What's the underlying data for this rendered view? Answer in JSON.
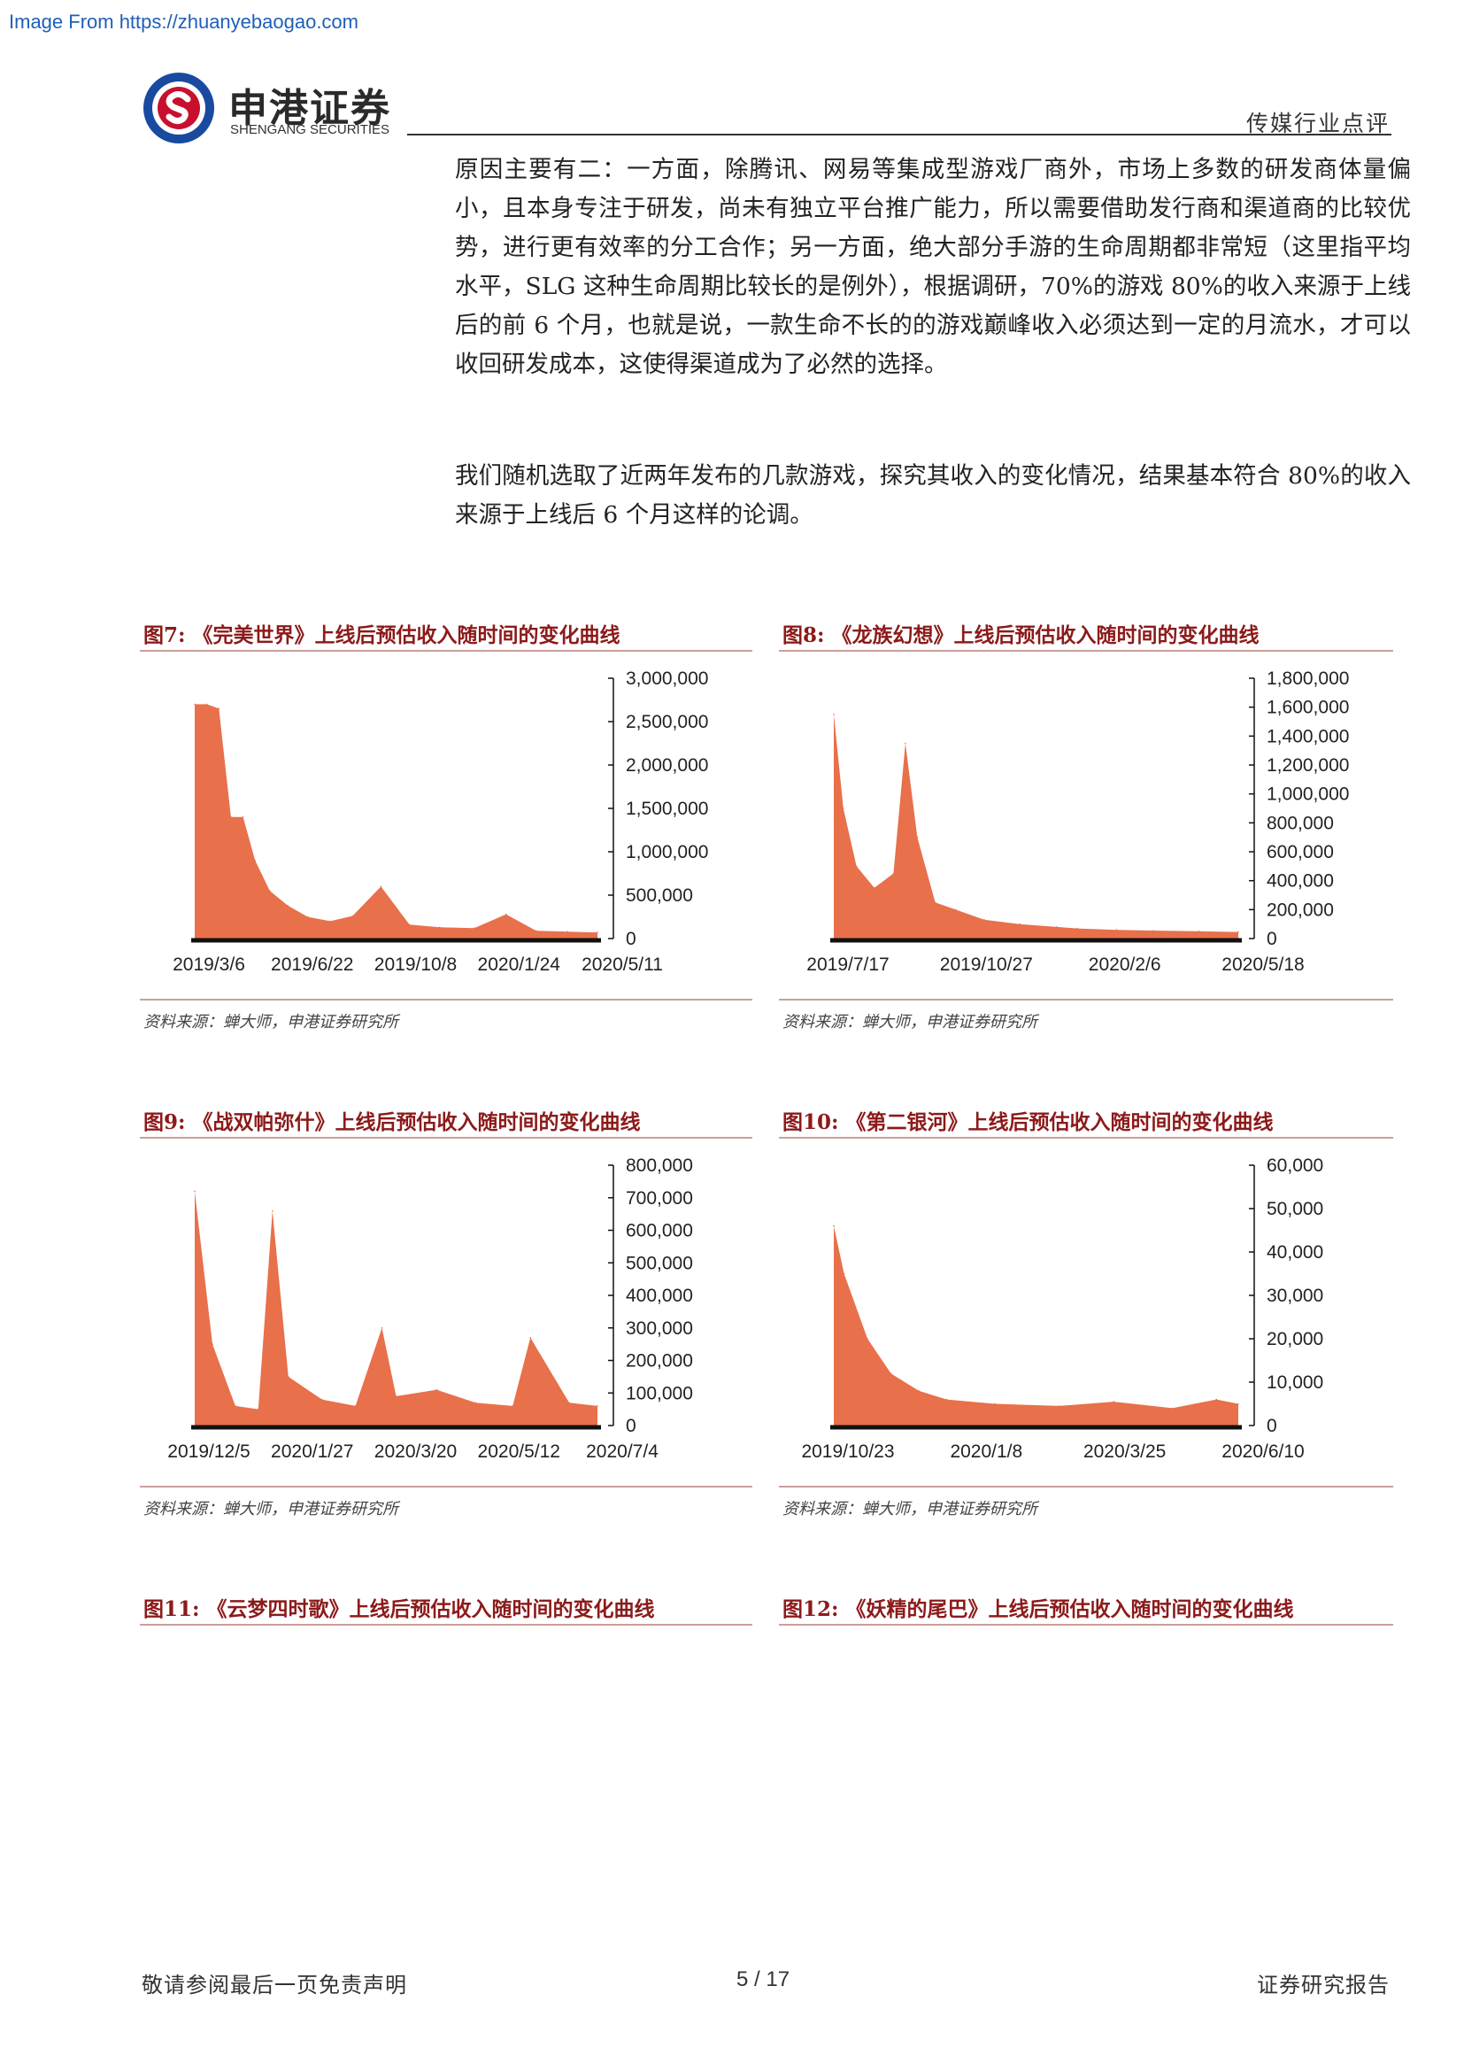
{
  "watermark": "Image From https://zhuanyebaogao.com",
  "brand": {
    "name_cn": "申港证券",
    "name_en": "SHENGANG SECURITIES",
    "logo_colors": [
      "#c8102e",
      "#1a4aa0"
    ]
  },
  "header": {
    "section": "传媒行业点评"
  },
  "body": {
    "paragraph1": "原因主要有二：一方面，除腾讯、网易等集成型游戏厂商外，市场上多数的研发商体量偏小，且本身专注于研发，尚未有独立平台推广能力，所以需要借助发行商和渠道商的比较优势，进行更有效率的分工合作；另一方面，绝大部分手游的生命周期都非常短（这里指平均水平，SLG 这种生命周期比较长的是例外），根据调研，70%的游戏 80%的收入来源于上线后的前 6 个月，也就是说，一款生命不长的的游戏巅峰收入必须达到一定的月流水，才可以收回研发成本，这使得渠道成为了必然的选择。",
    "paragraph2": "我们随机选取了近两年发布的几款游戏，探究其收入的变化情况，结果基本符合 80%的收入来源于上线后 6 个月这样的论调。"
  },
  "figures": [
    {
      "id": "fig7",
      "label": "图7:",
      "title": "《完美世界》上线后预估收入随时间的变化曲线",
      "source": "资料来源：蝉大师，申港证券研究所"
    },
    {
      "id": "fig8",
      "label": "图8:",
      "title": "《龙族幻想》上线后预估收入随时间的变化曲线",
      "source": "资料来源：蝉大师，申港证券研究所"
    },
    {
      "id": "fig9",
      "label": "图9:",
      "title": "《战双帕弥什》上线后预估收入随时间的变化曲线",
      "source": "资料来源：蝉大师，申港证券研究所"
    },
    {
      "id": "fig10",
      "label": "图10:",
      "title": "《第二银河》上线后预估收入随时间的变化曲线",
      "source": "资料来源：蝉大师，申港证券研究所"
    },
    {
      "id": "fig11",
      "label": "图11:",
      "title": "《云梦四时歌》上线后预估收入随时间的变化曲线"
    },
    {
      "id": "fig12",
      "label": "图12:",
      "title": "《妖精的尾巴》上线后预估收入随时间的变化曲线"
    }
  ],
  "chart_data": [
    {
      "type": "area",
      "color": "#e8704a",
      "x_ticks": [
        "2019/3/6",
        "2019/6/22",
        "2019/10/8",
        "2020/1/24",
        "2020/5/11"
      ],
      "y_ticks": [
        "3,000,000",
        "2,500,000",
        "2,000,000",
        "1,500,000",
        "1,000,000",
        "500,000",
        "0"
      ],
      "ylim": [
        0,
        3000000
      ],
      "x": [
        "2019/3/6",
        "2019/3/20",
        "2019/4/3",
        "2019/4/17",
        "2019/5/1",
        "2019/5/15",
        "2019/6/1",
        "2019/6/22",
        "2019/7/15",
        "2019/8/10",
        "2019/9/5",
        "2019/10/8",
        "2019/11/10",
        "2019/12/15",
        "2020/1/24",
        "2020/3/1",
        "2020/4/5",
        "2020/5/11",
        "2020/6/15"
      ],
      "values": [
        2700000,
        2700000,
        2650000,
        1400000,
        1400000,
        900000,
        550000,
        380000,
        250000,
        200000,
        260000,
        600000,
        160000,
        130000,
        120000,
        280000,
        90000,
        80000,
        70000
      ]
    },
    {
      "type": "area",
      "color": "#e8704a",
      "x_ticks": [
        "2019/7/17",
        "2019/10/27",
        "2020/2/6",
        "2020/5/18"
      ],
      "y_ticks": [
        "1,800,000",
        "1,600,000",
        "1,400,000",
        "1,200,000",
        "1,000,000",
        "800,000",
        "600,000",
        "400,000",
        "200,000",
        "0"
      ],
      "ylim": [
        0,
        1800000
      ],
      "x": [
        "2019/7/17",
        "2019/7/25",
        "2019/8/5",
        "2019/8/20",
        "2019/9/5",
        "2019/9/15",
        "2019/9/25",
        "2019/10/10",
        "2019/10/27",
        "2019/11/20",
        "2019/12/20",
        "2020/1/20",
        "2020/2/6",
        "2020/3/10",
        "2020/4/10",
        "2020/5/18",
        "2020/6/20"
      ],
      "values": [
        1550000,
        900000,
        500000,
        350000,
        450000,
        1350000,
        700000,
        250000,
        200000,
        130000,
        100000,
        80000,
        70000,
        60000,
        55000,
        50000,
        45000
      ]
    },
    {
      "type": "area",
      "color": "#e8704a",
      "x_ticks": [
        "2019/12/5",
        "2020/1/27",
        "2020/3/20",
        "2020/5/12",
        "2020/7/4"
      ],
      "y_ticks": [
        "800,000",
        "700,000",
        "600,000",
        "500,000",
        "400,000",
        "300,000",
        "200,000",
        "100,000",
        "0"
      ],
      "ylim": [
        0,
        800000
      ],
      "x": [
        "2019/12/5",
        "2019/12/15",
        "2019/12/28",
        "2020/1/10",
        "2020/1/18",
        "2020/1/27",
        "2020/2/15",
        "2020/3/5",
        "2020/3/20",
        "2020/3/28",
        "2020/4/20",
        "2020/5/12",
        "2020/6/2",
        "2020/6/12",
        "2020/7/4",
        "2020/7/20"
      ],
      "values": [
        720000,
        250000,
        60000,
        50000,
        660000,
        150000,
        80000,
        60000,
        300000,
        90000,
        110000,
        70000,
        60000,
        270000,
        70000,
        60000
      ]
    },
    {
      "type": "area",
      "color": "#e8704a",
      "x_ticks": [
        "2019/10/23",
        "2020/1/8",
        "2020/3/25",
        "2020/6/10"
      ],
      "y_ticks": [
        "60,000",
        "50,000",
        "40,000",
        "30,000",
        "20,000",
        "10,000",
        "0"
      ],
      "ylim": [
        0,
        60000
      ],
      "x": [
        "2019/10/23",
        "2019/10/30",
        "2019/11/15",
        "2019/12/1",
        "2019/12/20",
        "2020/1/8",
        "2020/2/10",
        "2020/3/25",
        "2020/5/1",
        "2020/6/10",
        "2020/7/10",
        "2020/7/25"
      ],
      "values": [
        46000,
        35000,
        20000,
        12000,
        8000,
        6000,
        5000,
        4500,
        5500,
        4000,
        6000,
        5000
      ]
    }
  ],
  "footer": {
    "left": "敬请参阅最后一页免责声明",
    "page": "5 / 17",
    "right": "证券研究报告"
  }
}
